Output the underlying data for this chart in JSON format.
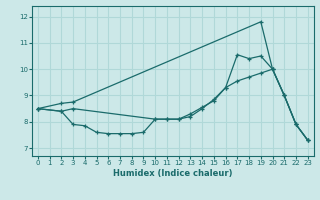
{
  "xlabel": "Humidex (Indice chaleur)",
  "xlim": [
    -0.5,
    23.5
  ],
  "ylim": [
    6.7,
    12.4
  ],
  "xticks": [
    0,
    1,
    2,
    3,
    4,
    5,
    6,
    7,
    8,
    9,
    10,
    11,
    12,
    13,
    14,
    15,
    16,
    17,
    18,
    19,
    20,
    21,
    22,
    23
  ],
  "yticks": [
    7,
    8,
    9,
    10,
    11,
    12
  ],
  "bg_color": "#cce8e8",
  "line_color": "#1a6b6b",
  "grid_color": "#b0d8d8",
  "line1_x": [
    0,
    2,
    3,
    19,
    20,
    21,
    22,
    23
  ],
  "line1_y": [
    8.5,
    8.7,
    8.75,
    11.8,
    10.0,
    9.0,
    7.9,
    7.3
  ],
  "line2_x": [
    0,
    2,
    3,
    10,
    11,
    12,
    13,
    14,
    15,
    16,
    17,
    18,
    19,
    20,
    21,
    22,
    23
  ],
  "line2_y": [
    8.5,
    8.4,
    8.5,
    8.1,
    8.1,
    8.1,
    8.3,
    8.55,
    8.8,
    9.3,
    9.55,
    9.7,
    9.85,
    10.0,
    9.0,
    7.9,
    7.3
  ],
  "line3_x": [
    0,
    2,
    3,
    4,
    5,
    6,
    7,
    8,
    9,
    10,
    11,
    12,
    13,
    14,
    15,
    16,
    17,
    18,
    19,
    20,
    21,
    22,
    23
  ],
  "line3_y": [
    8.5,
    8.4,
    7.9,
    7.85,
    7.6,
    7.55,
    7.55,
    7.55,
    7.6,
    8.1,
    8.1,
    8.1,
    8.2,
    8.5,
    8.85,
    9.3,
    10.55,
    10.4,
    10.5,
    10.0,
    9.0,
    7.9,
    7.3
  ]
}
